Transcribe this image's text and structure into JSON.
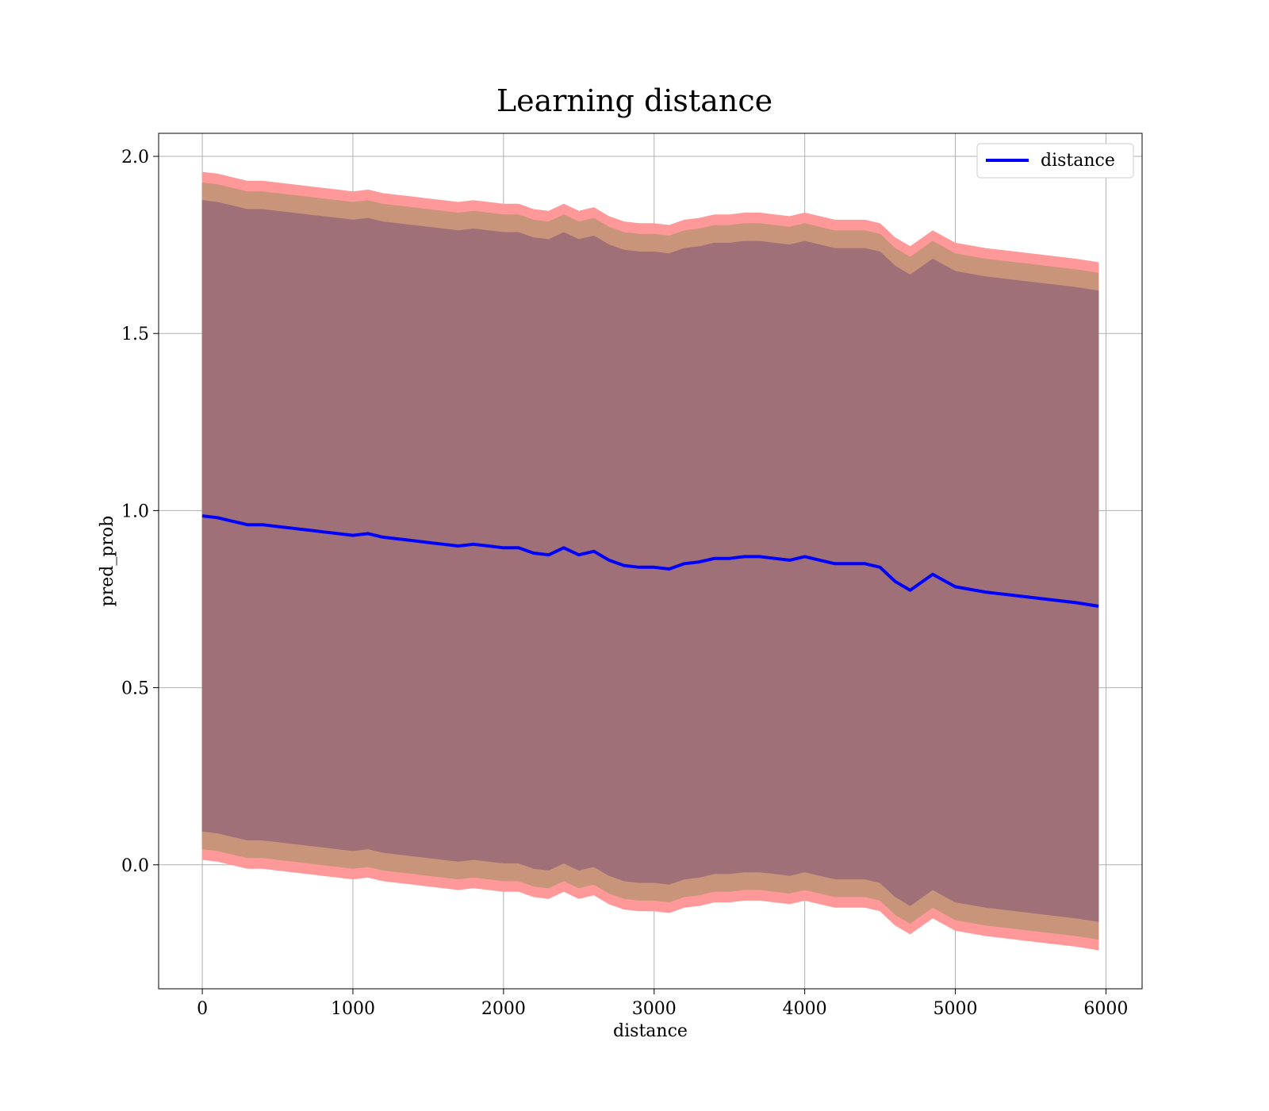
{
  "chart_data": {
    "type": "line",
    "title": "Learning distance",
    "xlabel": "distance",
    "ylabel": "pred_prob",
    "xlim": [
      -290,
      6240
    ],
    "ylim": [
      -0.35,
      2.065
    ],
    "xticks": [
      0,
      1000,
      2000,
      3000,
      4000,
      5000,
      6000
    ],
    "xtick_labels": [
      "0",
      "1000",
      "2000",
      "3000",
      "4000",
      "5000",
      "6000"
    ],
    "yticks": [
      0.0,
      0.5,
      1.0,
      1.5,
      2.0
    ],
    "ytick_labels": [
      "0.0",
      "0.5",
      "1.0",
      "1.5",
      "2.0"
    ],
    "grid": true,
    "legend": {
      "position": "top-right",
      "entries": [
        "distance"
      ]
    },
    "colors": {
      "line": "#0000ff",
      "band_outer": "#ff9999",
      "band_middle": "#c9957a",
      "band_inner": "#a07078",
      "grid": "#b0b0b0"
    },
    "series": [
      {
        "name": "distance",
        "x": [
          0,
          100,
          200,
          300,
          400,
          500,
          600,
          700,
          800,
          900,
          1000,
          1100,
          1200,
          1300,
          1400,
          1500,
          1600,
          1700,
          1800,
          1900,
          2000,
          2100,
          2200,
          2300,
          2400,
          2500,
          2600,
          2700,
          2800,
          2900,
          3000,
          3100,
          3200,
          3300,
          3400,
          3500,
          3600,
          3700,
          3800,
          3900,
          4000,
          4100,
          4200,
          4300,
          4400,
          4500,
          4600,
          4700,
          4850,
          5000,
          5200,
          5400,
          5600,
          5800,
          5950
        ],
        "values": [
          0.985,
          0.98,
          0.97,
          0.96,
          0.96,
          0.955,
          0.95,
          0.945,
          0.94,
          0.935,
          0.93,
          0.935,
          0.925,
          0.92,
          0.915,
          0.91,
          0.905,
          0.9,
          0.905,
          0.9,
          0.895,
          0.895,
          0.88,
          0.875,
          0.895,
          0.875,
          0.885,
          0.86,
          0.845,
          0.84,
          0.84,
          0.835,
          0.85,
          0.855,
          0.865,
          0.865,
          0.87,
          0.87,
          0.865,
          0.86,
          0.87,
          0.86,
          0.85,
          0.85,
          0.85,
          0.84,
          0.8,
          0.775,
          0.82,
          0.785,
          0.77,
          0.76,
          0.75,
          0.74,
          0.73
        ]
      }
    ],
    "bands": [
      {
        "level": "outer",
        "upper_offset": 0.97,
        "lower_offset": 0.97
      },
      {
        "level": "middle",
        "upper_offset": 0.94,
        "lower_offset": 0.94
      },
      {
        "level": "inner",
        "upper_offset": 0.89,
        "lower_offset": 0.89
      }
    ]
  }
}
